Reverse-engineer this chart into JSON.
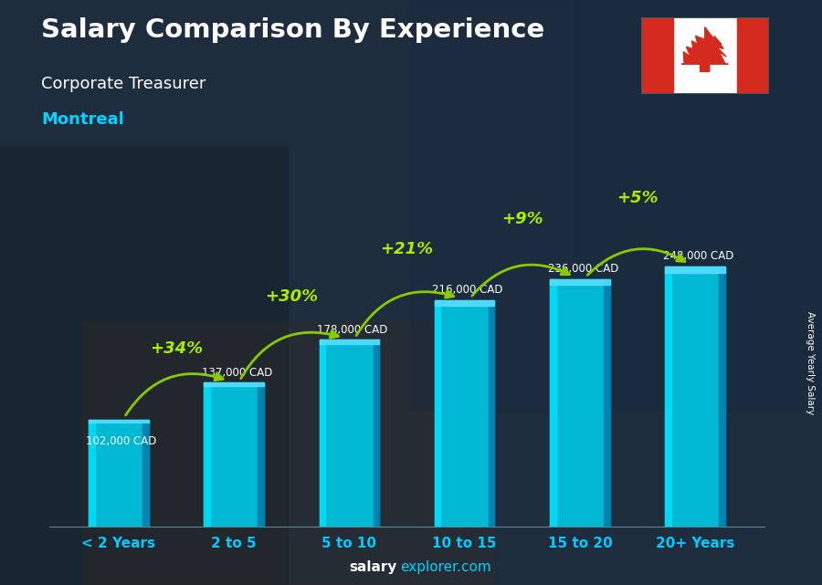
{
  "title": "Salary Comparison By Experience",
  "subtitle": "Corporate Treasurer",
  "city": "Montreal",
  "categories": [
    "< 2 Years",
    "2 to 5",
    "5 to 10",
    "10 to 15",
    "15 to 20",
    "20+ Years"
  ],
  "values": [
    102000,
    137000,
    178000,
    216000,
    236000,
    248000
  ],
  "labels": [
    "102,000 CAD",
    "137,000 CAD",
    "178,000 CAD",
    "216,000 CAD",
    "236,000 CAD",
    "248,000 CAD"
  ],
  "pct_changes": [
    "+34%",
    "+30%",
    "+21%",
    "+9%",
    "+5%"
  ],
  "bar_color": "#00b8d4",
  "bar_highlight": "#00e5ff",
  "bar_shadow": "#0077a8",
  "bg_color": "#1c2b3a",
  "title_color": "#ffffff",
  "subtitle_color": "#ffffff",
  "city_color": "#00d4ff",
  "label_color": "#ffffff",
  "pct_color": "#aaee00",
  "arrow_color": "#88cc00",
  "xtick_color": "#00ccff",
  "footer_bold": "salary",
  "footer_normal": "explorer.com",
  "ylabel": "Average Yearly Salary",
  "ylim_max": 290000
}
